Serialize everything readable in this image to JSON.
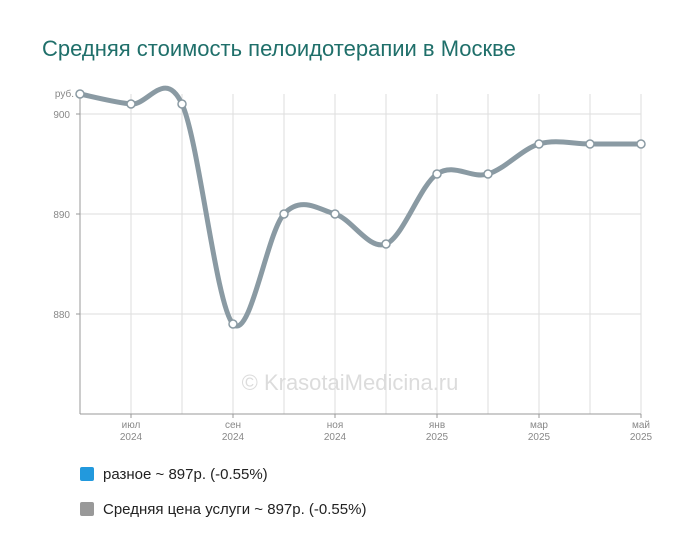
{
  "title": "Средняя стоимость пелоидотерапии в Москве",
  "watermark": "© KrasotaiMedicina.ru",
  "legend": {
    "items": [
      {
        "label": "разное ~ 897р. (-0.55%)",
        "color": "#2299dd"
      },
      {
        "label": "Средняя цена услуги ~ 897р. (-0.55%)",
        "color": "#999999"
      }
    ]
  },
  "chart_data": {
    "type": "line",
    "title": "Средняя стоимость пелоидотерапии в Москве",
    "ylabel": "руб.",
    "ylim": [
      870,
      902
    ],
    "y_ticks": [
      880,
      890,
      900
    ],
    "y_tick_labels": [
      "880",
      "890",
      "900"
    ],
    "grid": true,
    "x_tick_labels": [
      {
        "month": "июл",
        "year": "2024"
      },
      {
        "month": "сен",
        "year": "2024"
      },
      {
        "month": "ноя",
        "year": "2024"
      },
      {
        "month": "янв",
        "year": "2025"
      },
      {
        "month": "мар",
        "year": "2025"
      },
      {
        "month": "май",
        "year": "2025"
      }
    ],
    "x": [
      "2024-06",
      "2024-07",
      "2024-08",
      "2024-09",
      "2024-10",
      "2024-11",
      "2024-12",
      "2025-01",
      "2025-02",
      "2025-03",
      "2025-04",
      "2025-05"
    ],
    "series": [
      {
        "name": "разное",
        "color": "#2299dd",
        "values": [
          902,
          901,
          901,
          879,
          890,
          890,
          887,
          894,
          894,
          897,
          897,
          897
        ]
      },
      {
        "name": "Средняя цена услуги",
        "color": "#8a9aa3",
        "values": [
          902,
          901,
          901,
          879,
          890,
          890,
          887,
          894,
          894,
          897,
          897,
          897
        ]
      }
    ]
  }
}
